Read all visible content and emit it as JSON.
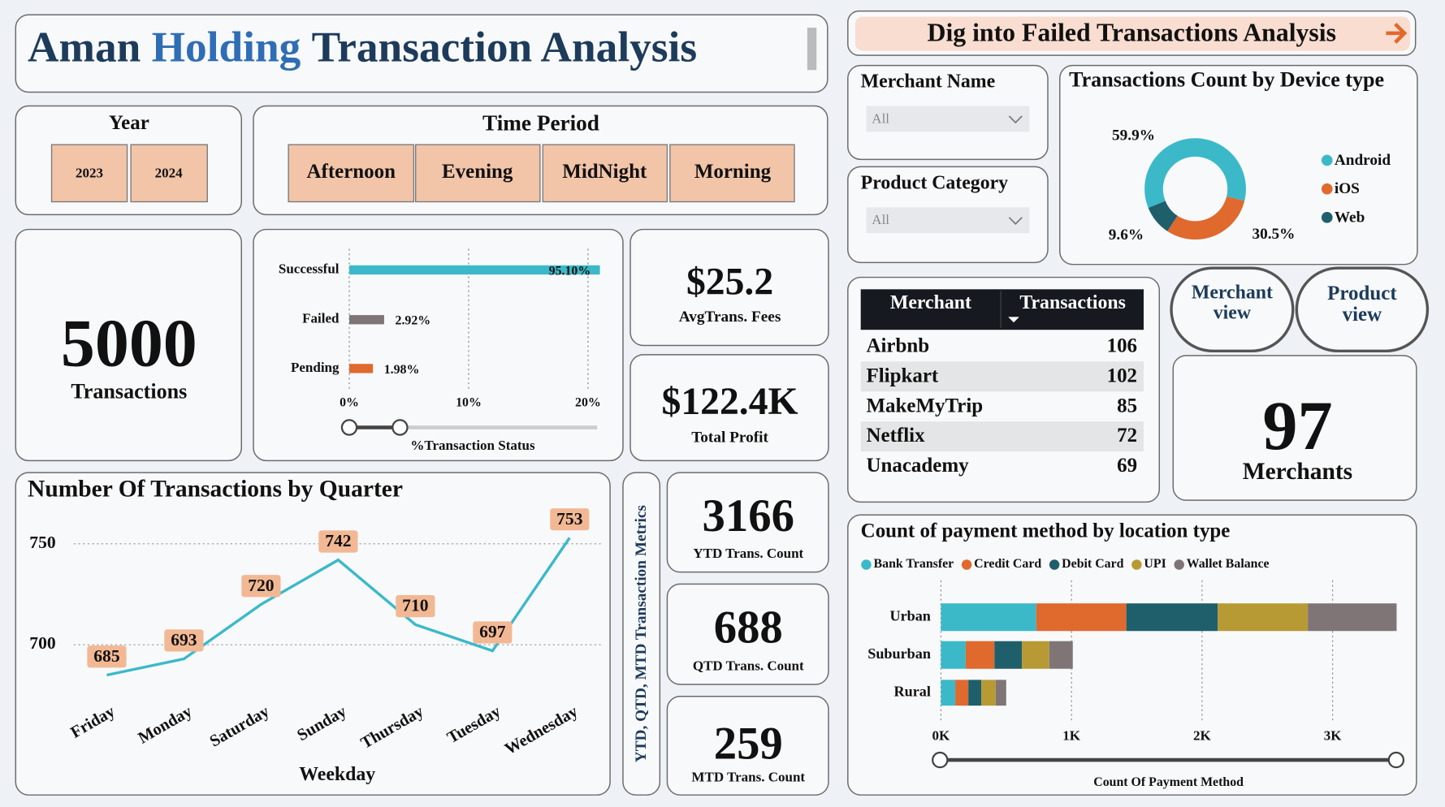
{
  "header": {
    "title_parts": [
      "Aman",
      "Holding",
      "Transaction Analysis"
    ]
  },
  "nav_button": "Dig into Failed Transactions Analysis",
  "slicers": {
    "year": {
      "label": "Year",
      "options": [
        "2023",
        "2024"
      ]
    },
    "time_period": {
      "label": "Time Period",
      "options": [
        "Afternoon",
        "Evening",
        "MidNight",
        "Morning"
      ]
    },
    "merchant_name": {
      "label": "Merchant Name",
      "value": "All"
    },
    "product_category": {
      "label": "Product Category",
      "value": "All"
    }
  },
  "kpis": {
    "transactions": {
      "value": 5000,
      "label": "Transactions"
    },
    "avg_fees": {
      "value": "$25.2",
      "label": "AvgTrans. Fees"
    },
    "profit": {
      "value": "$122.4K",
      "label": "Total Profit"
    },
    "merchants": {
      "value": 97,
      "label": "Merchants"
    },
    "metrics_label": "YTD, QTD, MTD Transaction Metrics",
    "ytd": {
      "value": 3166,
      "label": "YTD Trans. Count"
    },
    "qtd": {
      "value": 688,
      "label": "QTD Trans. Count"
    },
    "mtd": {
      "value": 259,
      "label": "MTD Trans. Count"
    }
  },
  "buttons": [
    "Merchant view",
    "Product view"
  ],
  "table": {
    "columns": [
      "Merchant",
      "Transactions"
    ],
    "rows": [
      [
        "Airbnb",
        106
      ],
      [
        "Flipkart",
        102
      ],
      [
        "MakeMyTrip",
        85
      ],
      [
        "Netflix",
        72
      ],
      [
        "Unacademy",
        69
      ]
    ]
  },
  "chart_data": [
    {
      "type": "hbar",
      "x_label": "%Transaction Status",
      "categories": [
        "Successful",
        "Failed",
        "Pending"
      ],
      "values": [
        95.1,
        2.92,
        1.98
      ],
      "value_labels": [
        "95.10%",
        "2.92%",
        "1.98%"
      ],
      "colors": [
        "#3bb9c9",
        "#7f7577",
        "#e0692e"
      ],
      "xlim": [
        0,
        21
      ],
      "xticks": [
        {
          "value": 0,
          "label": "0%"
        },
        {
          "value": 10,
          "label": "10%"
        },
        {
          "value": 20,
          "label": "20%"
        }
      ],
      "grid": true
    },
    {
      "type": "line",
      "title": "Number Of Transactions by Quarter",
      "x_label": "Weekday",
      "categories": [
        "Friday",
        "Monday",
        "Saturday",
        "Sunday",
        "Thursday",
        "Tuesday",
        "Wednesday"
      ],
      "values": [
        685,
        693,
        720,
        742,
        710,
        697,
        753
      ],
      "color": "#3bb9c9",
      "ylim": [
        684,
        757
      ],
      "yticks": [
        700,
        750
      ],
      "grid": true
    },
    {
      "type": "pie",
      "title": "Transactions Count by Device type",
      "categories": [
        "Android",
        "iOS",
        "Web"
      ],
      "values": [
        59.9,
        30.5,
        9.6
      ],
      "value_labels": [
        "59.9%",
        "30.5%",
        "9.6%"
      ],
      "colors": [
        "#3bb9c9",
        "#e0692e",
        "#1f5f6b"
      ]
    },
    {
      "type": "stacked_hbar",
      "title": "Count of payment method by location type",
      "x_label": "Count Of Payment Method",
      "categories": [
        "Urban",
        "Suburban",
        "Rural"
      ],
      "series": [
        {
          "name": "Bank Transfer",
          "color": "#3bb9c9",
          "values": [
            730,
            190,
            110
          ]
        },
        {
          "name": "Credit Card",
          "color": "#e0692e",
          "values": [
            690,
            220,
            100
          ]
        },
        {
          "name": "Debit Card",
          "color": "#1f5f6b",
          "values": [
            700,
            210,
            100
          ]
        },
        {
          "name": "UPI",
          "color": "#b89a35",
          "values": [
            690,
            210,
            110
          ]
        },
        {
          "name": "Wallet Balance",
          "color": "#7f7577",
          "values": [
            680,
            180,
            80
          ]
        }
      ],
      "xlim": [
        0,
        3550
      ],
      "xticks": [
        {
          "value": 0,
          "label": "0K"
        },
        {
          "value": 1000,
          "label": "1K"
        },
        {
          "value": 2000,
          "label": "2K"
        },
        {
          "value": 3000,
          "label": "3K"
        }
      ],
      "grid": true
    }
  ]
}
